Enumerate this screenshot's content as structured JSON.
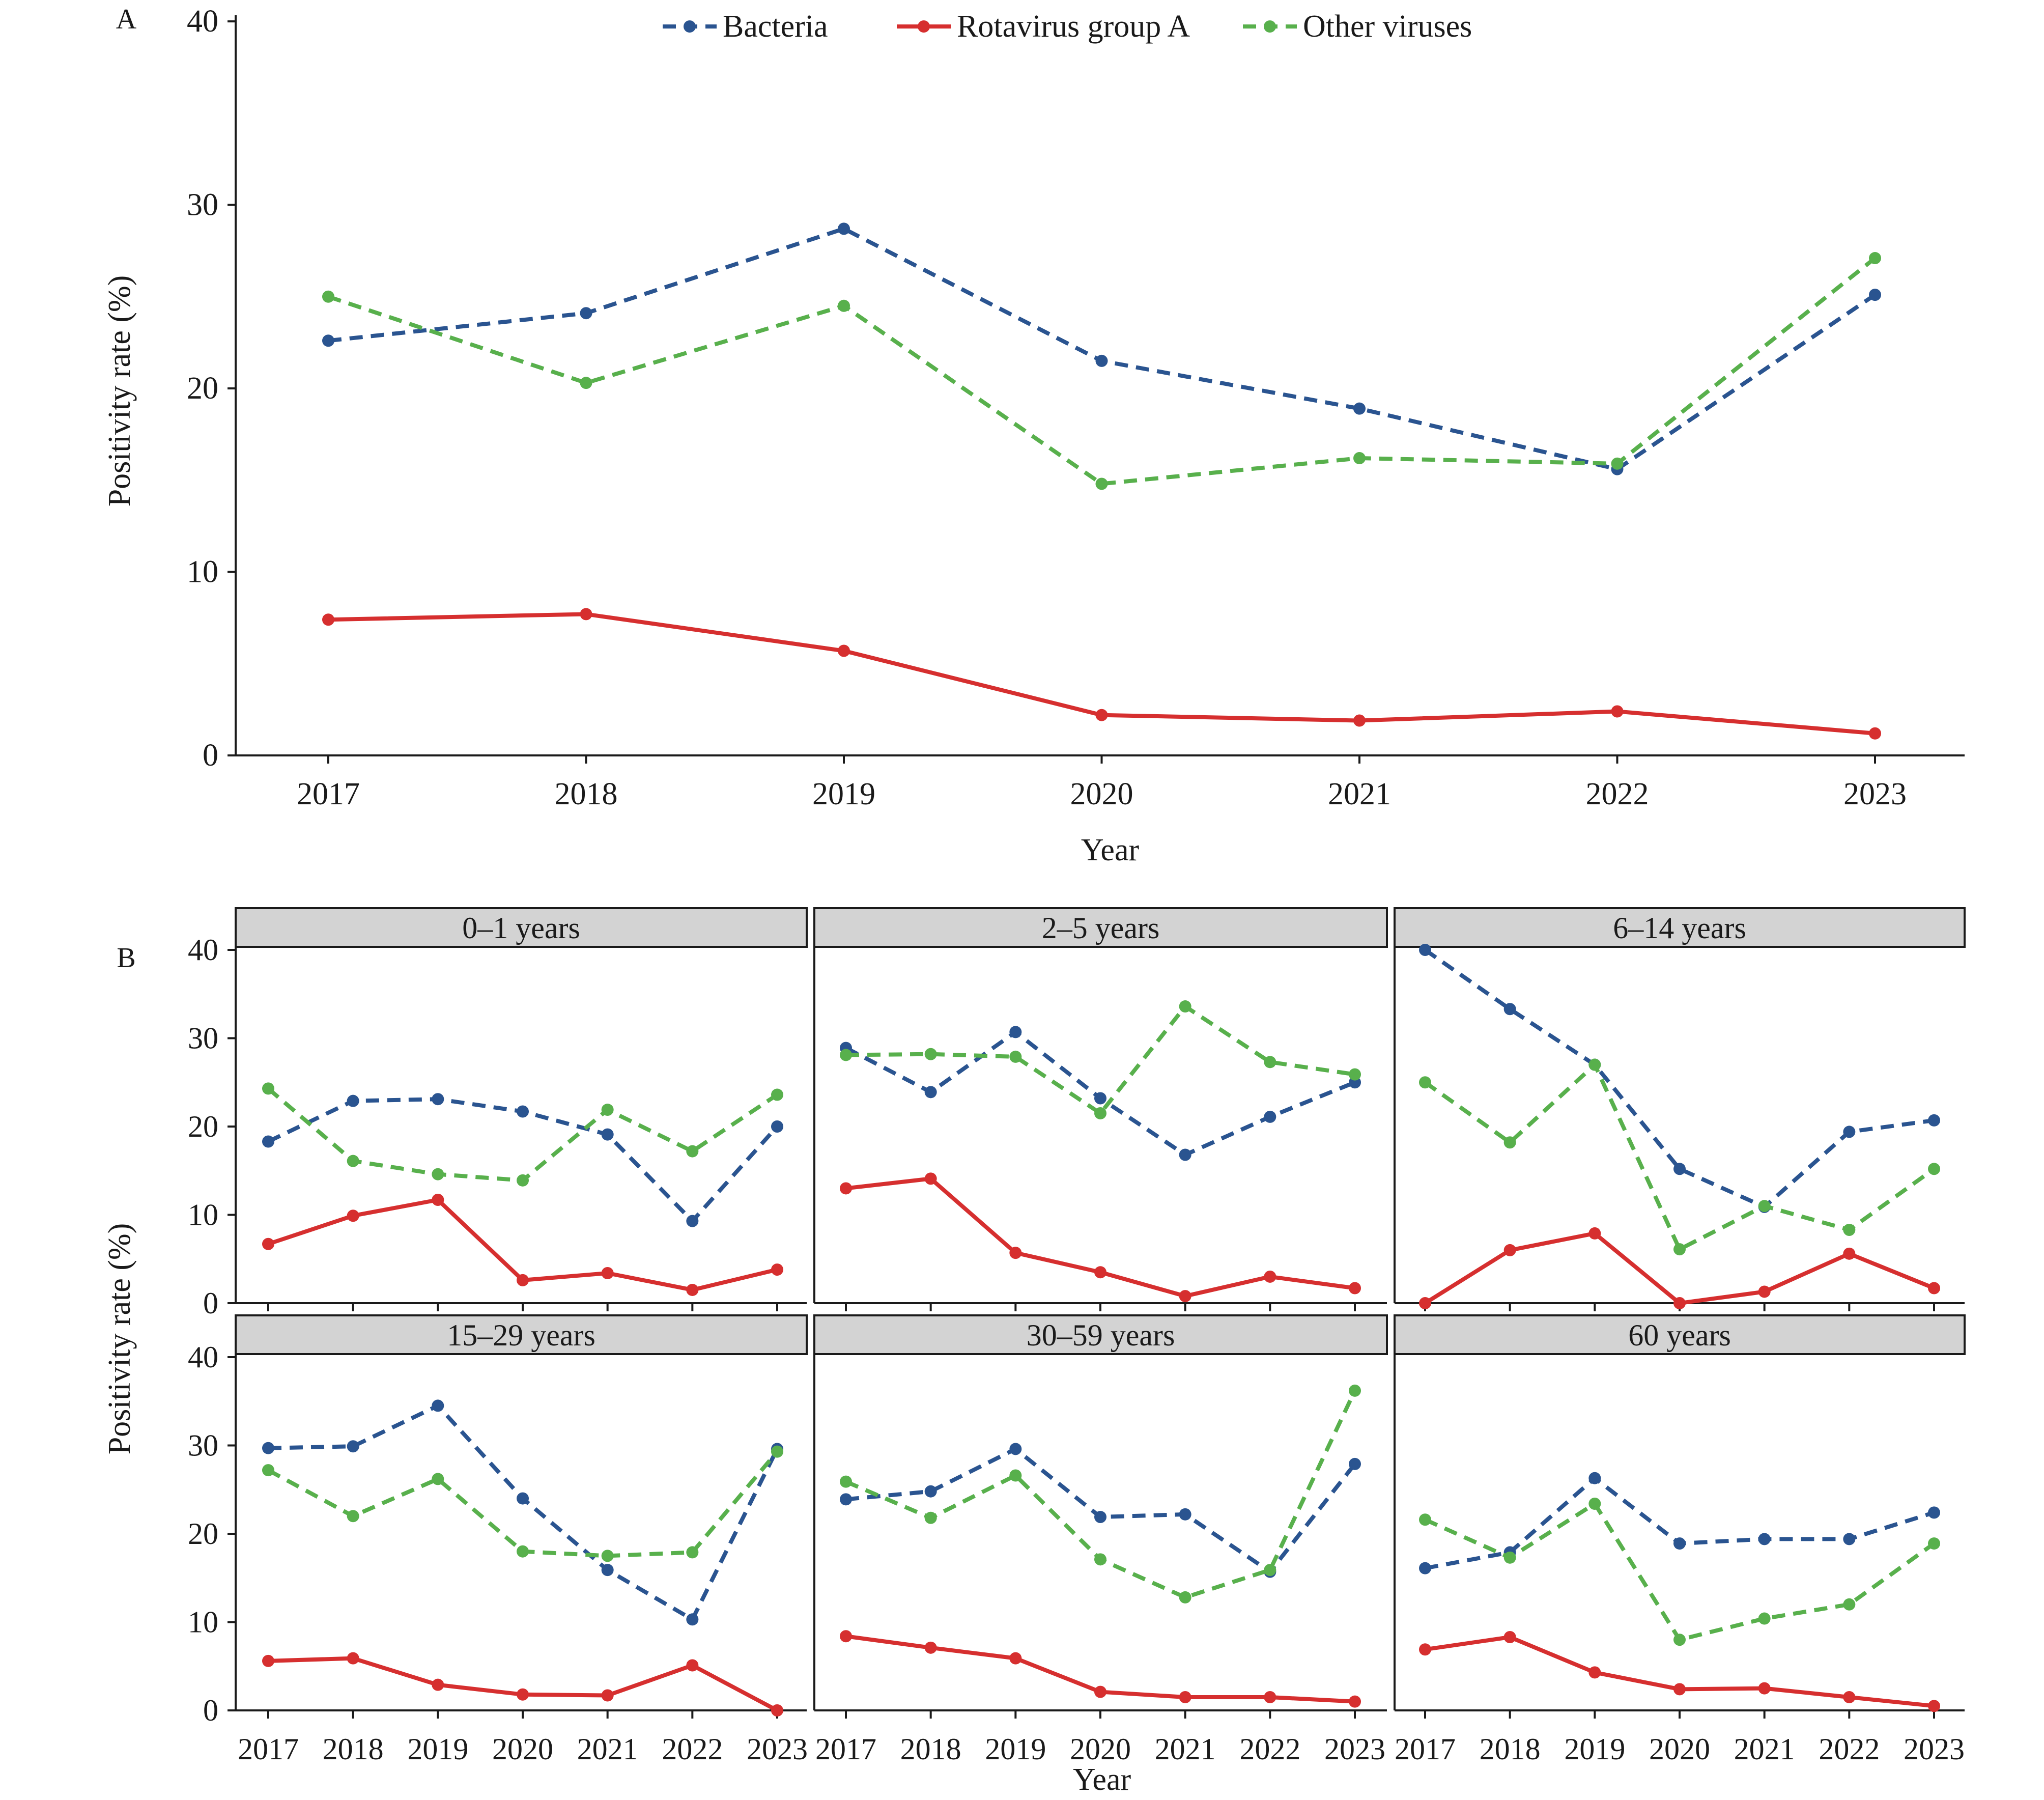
{
  "legend": [
    {
      "name": "Bacteria",
      "color": "#2a5490",
      "dash": true
    },
    {
      "name": "Rotavirus group A",
      "color": "#d62f2f",
      "dash": false
    },
    {
      "name": "Other viruses",
      "color": "#58b04c",
      "dash": true
    }
  ],
  "chart_data": [
    {
      "type": "line",
      "panel_label": "A",
      "x": [
        "2017",
        "2018",
        "2019",
        "2020",
        "2021",
        "2022",
        "2023"
      ],
      "xlabel": "Year",
      "ylabel": "Positivity rate (%)",
      "ylim": [
        0,
        40
      ],
      "yticks": [
        "0",
        "10",
        "20",
        "30",
        "40"
      ],
      "legend_position": "top",
      "grid": false,
      "series": [
        {
          "name": "Bacteria",
          "values": [
            22.6,
            24.1,
            28.7,
            21.5,
            18.9,
            15.6,
            25.1
          ]
        },
        {
          "name": "Rotavirus group A",
          "values": [
            7.4,
            7.7,
            5.7,
            2.2,
            1.9,
            2.4,
            1.2
          ]
        },
        {
          "name": "Other viruses",
          "values": [
            25.0,
            20.3,
            24.5,
            14.8,
            16.2,
            15.9,
            27.1
          ]
        }
      ]
    },
    {
      "type": "line",
      "panel_label": "B",
      "x": [
        "2017",
        "2018",
        "2019",
        "2020",
        "2021",
        "2022",
        "2023"
      ],
      "xlabel": "Year",
      "ylabel": "Positivity rate (%)",
      "ylim": [
        0,
        40
      ],
      "yticks": [
        "0",
        "10",
        "20",
        "30",
        "40"
      ],
      "grid": false,
      "facets": [
        {
          "title": "0–1 years",
          "series": [
            {
              "name": "Bacteria",
              "values": [
                18.3,
                22.9,
                23.1,
                21.7,
                19.1,
                9.3,
                20.0
              ]
            },
            {
              "name": "Rotavirus group A",
              "values": [
                6.7,
                9.9,
                11.7,
                2.6,
                3.4,
                1.5,
                3.8
              ]
            },
            {
              "name": "Other viruses",
              "values": [
                24.3,
                16.1,
                14.6,
                13.9,
                21.9,
                17.2,
                23.6
              ]
            }
          ]
        },
        {
          "title": "2–5 years",
          "series": [
            {
              "name": "Bacteria",
              "values": [
                28.9,
                23.9,
                30.7,
                23.2,
                16.8,
                21.1,
                25.0
              ]
            },
            {
              "name": "Rotavirus group A",
              "values": [
                13.0,
                14.1,
                5.7,
                3.5,
                0.8,
                3.0,
                1.7
              ]
            },
            {
              "name": "Other viruses",
              "values": [
                28.1,
                28.2,
                27.9,
                21.5,
                33.6,
                27.3,
                25.9
              ]
            }
          ]
        },
        {
          "title": "6–14 years",
          "series": [
            {
              "name": "Bacteria",
              "values": [
                40.0,
                33.3,
                27.0,
                15.2,
                10.9,
                19.4,
                20.7
              ]
            },
            {
              "name": "Rotavirus group A",
              "values": [
                0.0,
                6.0,
                7.9,
                0.0,
                1.3,
                5.6,
                1.7
              ]
            },
            {
              "name": "Other viruses",
              "values": [
                25.0,
                18.2,
                27.0,
                6.1,
                11.0,
                8.3,
                15.2
              ]
            }
          ]
        },
        {
          "title": "15–29 years",
          "series": [
            {
              "name": "Bacteria",
              "values": [
                29.7,
                29.9,
                34.5,
                24.0,
                15.9,
                10.3,
                29.6
              ]
            },
            {
              "name": "Rotavirus group A",
              "values": [
                5.6,
                5.9,
                2.9,
                1.8,
                1.7,
                5.1,
                0.0
              ]
            },
            {
              "name": "Other viruses",
              "values": [
                27.2,
                22.0,
                26.2,
                18.0,
                17.5,
                17.9,
                29.3
              ]
            }
          ]
        },
        {
          "title": "30–59 years",
          "series": [
            {
              "name": "Bacteria",
              "values": [
                23.9,
                24.8,
                29.6,
                21.9,
                22.2,
                15.7,
                27.9
              ]
            },
            {
              "name": "Rotavirus group A",
              "values": [
                8.4,
                7.1,
                5.9,
                2.1,
                1.5,
                1.5,
                1.0
              ]
            },
            {
              "name": "Other viruses",
              "values": [
                25.9,
                21.8,
                26.6,
                17.1,
                12.8,
                15.9,
                36.2
              ]
            }
          ]
        },
        {
          "title": "60 years",
          "series": [
            {
              "name": "Bacteria",
              "values": [
                16.1,
                17.9,
                26.3,
                18.9,
                19.4,
                19.4,
                22.4
              ]
            },
            {
              "name": "Rotavirus group A",
              "values": [
                6.9,
                8.3,
                4.3,
                2.4,
                2.5,
                1.5,
                0.5
              ]
            },
            {
              "name": "Other viruses",
              "values": [
                21.6,
                17.3,
                23.4,
                8.0,
                10.4,
                12.0,
                18.9
              ]
            }
          ]
        }
      ]
    }
  ]
}
